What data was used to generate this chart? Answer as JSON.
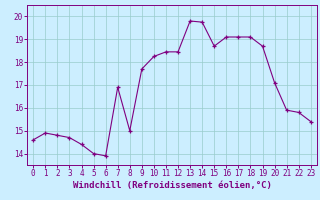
{
  "x": [
    0,
    1,
    2,
    3,
    4,
    5,
    6,
    7,
    8,
    9,
    10,
    11,
    12,
    13,
    14,
    15,
    16,
    17,
    18,
    19,
    20,
    21,
    22,
    23
  ],
  "y": [
    14.6,
    14.9,
    14.8,
    14.7,
    14.4,
    14.0,
    13.9,
    16.9,
    15.0,
    17.7,
    18.25,
    18.45,
    18.45,
    19.8,
    19.75,
    18.7,
    19.1,
    19.1,
    19.1,
    18.7,
    17.1,
    15.9,
    15.8,
    15.4
  ],
  "line_color": "#800080",
  "marker": "+",
  "bg_color": "#cceeff",
  "grid_color": "#99cccc",
  "xlabel": "Windchill (Refroidissement éolien,°C)",
  "ylim": [
    13.5,
    20.5
  ],
  "xlim": [
    -0.5,
    23.5
  ],
  "yticks": [
    14,
    15,
    16,
    17,
    18,
    19,
    20
  ],
  "xticks": [
    0,
    1,
    2,
    3,
    4,
    5,
    6,
    7,
    8,
    9,
    10,
    11,
    12,
    13,
    14,
    15,
    16,
    17,
    18,
    19,
    20,
    21,
    22,
    23
  ],
  "axis_color": "#800080",
  "tick_color": "#800080",
  "label_fontsize": 6.5,
  "tick_fontsize": 5.5,
  "linewidth": 0.8,
  "markersize": 3,
  "markeredgewidth": 0.9
}
